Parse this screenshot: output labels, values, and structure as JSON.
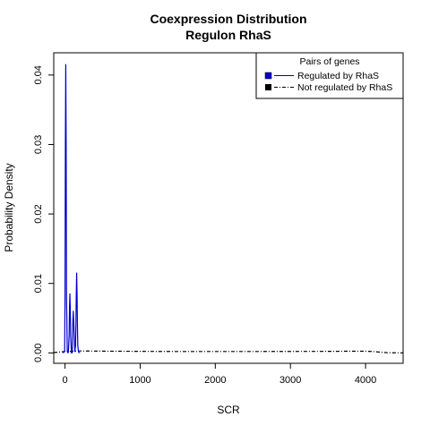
{
  "chart_data": {
    "type": "line",
    "title": "Coexpression Distribution",
    "subtitle": "Regulon RhaS",
    "xlabel": "SCR",
    "ylabel": "Probability Density",
    "xlim": [
      -150,
      4500
    ],
    "ylim": [
      -0.0015,
      0.0432
    ],
    "x_ticks": [
      0,
      1000,
      2000,
      3000,
      4000
    ],
    "x_tick_labels": [
      "0",
      "1000",
      "2000",
      "3000",
      "4000"
    ],
    "y_ticks": [
      0.0,
      0.01,
      0.02,
      0.03,
      0.04
    ],
    "y_tick_labels": [
      "0.00",
      "0.01",
      "0.02",
      "0.03",
      "0.04"
    ],
    "grid": false,
    "legend": {
      "title": "Pairs of genes",
      "position": "top-right",
      "entries": [
        "Regulated by  RhaS",
        "Not regulated by  RhaS"
      ]
    },
    "series": [
      {
        "name": "Regulated by  RhaS",
        "color": "#0000cc",
        "style": "solid",
        "x": [
          -30,
          -5,
          0,
          5,
          10,
          15,
          20,
          30,
          40,
          45,
          55,
          60,
          65,
          70,
          75,
          85,
          95,
          100,
          105,
          110,
          115,
          125,
          130,
          140,
          145,
          150,
          155,
          160,
          165,
          170,
          180,
          200
        ],
        "y": [
          0,
          0.0002,
          0.008,
          0.03,
          0.0415,
          0.03,
          0.008,
          0.0002,
          0,
          0.0002,
          0.0025,
          0.0065,
          0.0085,
          0.0065,
          0.0025,
          0,
          0,
          0.002,
          0.0048,
          0.006,
          0.0048,
          0.002,
          0.0002,
          0.001,
          0.004,
          0.0085,
          0.0115,
          0.0085,
          0.004,
          0.001,
          0.0001,
          0
        ]
      },
      {
        "name": "Not regulated by  RhaS",
        "color": "#000000",
        "style": "dashdot",
        "x": [
          -150,
          0,
          200,
          500,
          1000,
          1500,
          2000,
          2500,
          3000,
          3500,
          3800,
          4000,
          4100,
          4200,
          4300,
          4500
        ],
        "y": [
          5e-05,
          0.0002,
          0.00028,
          0.00025,
          0.00022,
          0.0002,
          0.0002,
          0.0002,
          0.00021,
          0.00022,
          0.00024,
          0.00024,
          0.0002,
          0.0001,
          2e-05,
          0
        ]
      }
    ]
  }
}
